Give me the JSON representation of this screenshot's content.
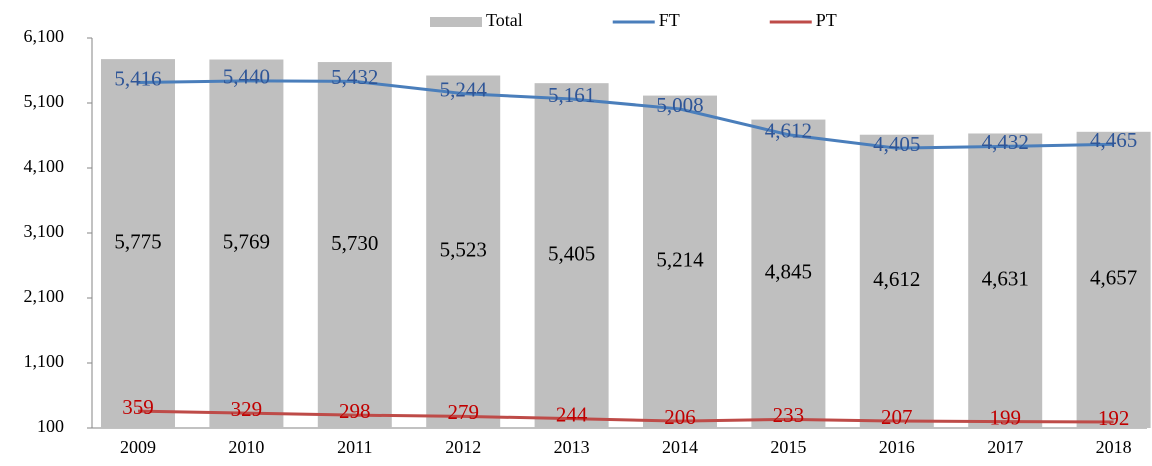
{
  "chart_data": {
    "type": "combo",
    "categories": [
      "2009",
      "2010",
      "2011",
      "2012",
      "2013",
      "2014",
      "2015",
      "2016",
      "2017",
      "2018"
    ],
    "series": [
      {
        "name": "Total",
        "type": "bar",
        "color": "#bfbfbf",
        "label_color": "#000000",
        "values": [
          5775,
          5769,
          5730,
          5523,
          5405,
          5214,
          4845,
          4612,
          4631,
          4657
        ],
        "value_labels": [
          "5,775",
          "5,769",
          "5,730",
          "5,523",
          "5,405",
          "5,214",
          "4,845",
          "4,612",
          "4,631",
          "4,657"
        ]
      },
      {
        "name": "FT",
        "type": "line",
        "color": "#4a7ebb",
        "label_color": "#2e5597",
        "values": [
          5416,
          5440,
          5432,
          5244,
          5161,
          5008,
          4612,
          4405,
          4432,
          4465
        ],
        "value_labels": [
          "5,416",
          "5,440",
          "5,432",
          "5,244",
          "5,161",
          "5,008",
          "4,612",
          "4,405",
          "4,432",
          "4,465"
        ]
      },
      {
        "name": "PT",
        "type": "line",
        "color": "#be4b48",
        "label_color": "#c00000",
        "values": [
          359,
          329,
          298,
          279,
          244,
          206,
          233,
          207,
          199,
          192
        ]
      }
    ],
    "ylim": [
      100,
      6100
    ],
    "yticks": [
      100,
      {
        "value": 1100,
        "label": "1,100"
      },
      {
        "value": 2100,
        "label": "2,100"
      },
      {
        "value": 3100,
        "label": "3,100"
      },
      {
        "value": 4100,
        "label": "4,100"
      },
      {
        "value": 5100,
        "label": "5,100"
      },
      {
        "value": 6100,
        "label": "6,100"
      }
    ],
    "grid": false,
    "legend": "top"
  }
}
